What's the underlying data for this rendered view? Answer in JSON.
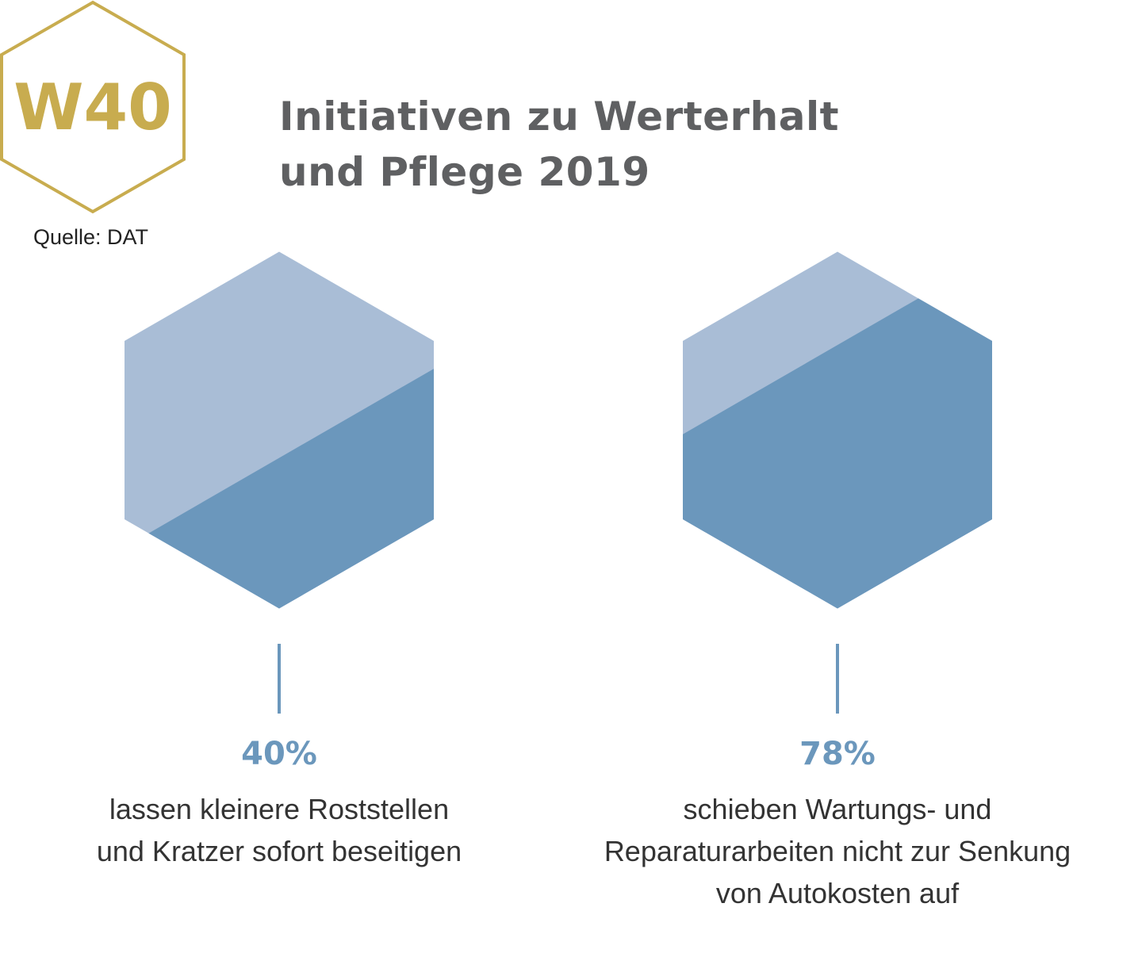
{
  "logo": {
    "text": "W40"
  },
  "title": {
    "line1": "Initiativen zu Werterhalt",
    "line2": "und Pflege 2019"
  },
  "source": "Quelle: DAT",
  "colors": {
    "gold": "#c8ac4f",
    "light": "#a9bdd6",
    "dark": "#6b97bc",
    "title": "#5f6062"
  },
  "chart_data": {
    "type": "hexagon-fill",
    "title": "Initiativen zu Werterhalt und Pflege 2019",
    "items": [
      {
        "value": 40,
        "label": "40%",
        "desc": [
          "lassen kleinere Roststellen",
          "und Kratzer sofort beseitigen"
        ]
      },
      {
        "value": 78,
        "label": "78%",
        "desc": [
          "schieben Wartungs- und",
          "Reparaturarbeiten nicht zur Senkung",
          "von Autokosten auf"
        ]
      }
    ]
  }
}
